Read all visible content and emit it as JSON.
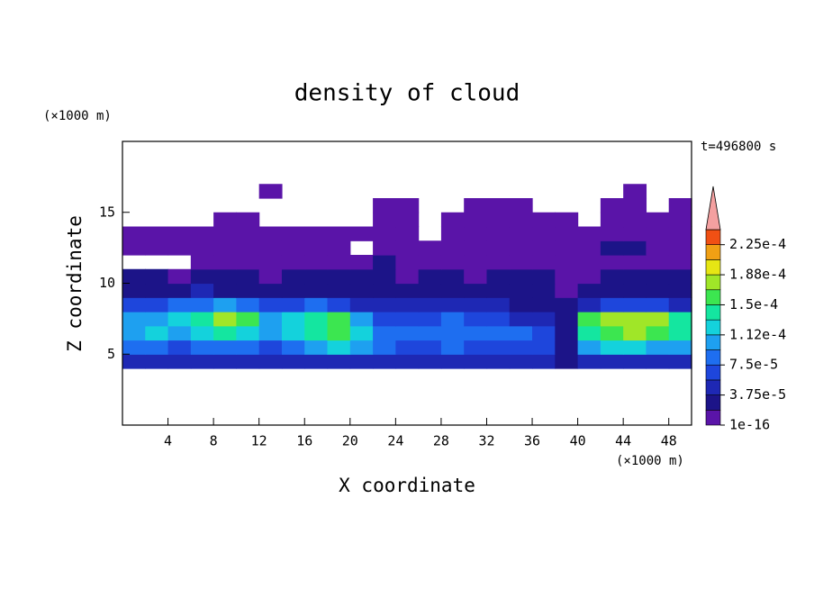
{
  "chart_data": {
    "type": "contour",
    "title": "density of cloud",
    "x_label": "X coordinate",
    "y_label": "Z coordinate",
    "x_unit": "(×1000 m)",
    "y_unit": "(×1000 m)",
    "annotation": "t=496800 s",
    "xlim": [
      0,
      50
    ],
    "ylim": [
      0,
      20
    ],
    "xticks": [
      4,
      8,
      12,
      16,
      20,
      24,
      28,
      32,
      36,
      40,
      44,
      48
    ],
    "yticks": [
      5,
      10,
      15
    ],
    "x": [
      1,
      3,
      5,
      7,
      9,
      11,
      13,
      15,
      17,
      19,
      21,
      23,
      25,
      27,
      29,
      31,
      33,
      35,
      37,
      39,
      41,
      43,
      45,
      47,
      49
    ],
    "y": [
      4.5,
      5.5,
      6.5,
      7.5,
      8.5,
      9.5,
      10.5,
      11.5,
      12.5,
      13.5,
      14.5,
      15.5,
      16.5,
      17.5
    ],
    "z": [
      [
        5e-05,
        5e-05,
        5e-05,
        5e-05,
        5e-05,
        5e-05,
        5e-05,
        5e-05,
        5e-05,
        5e-05,
        5e-05,
        5e-05,
        5e-05,
        5e-05,
        5e-05,
        5e-05,
        5e-05,
        5e-05,
        5e-05,
        2e-05,
        5e-05,
        5e-05,
        5e-05,
        5e-05,
        5e-05
      ],
      [
        9e-05,
        8e-05,
        7e-05,
        8e-05,
        9e-05,
        8e-05,
        7e-05,
        9e-05,
        0.00011,
        0.00012,
        0.0001,
        8e-05,
        7e-05,
        6e-05,
        8e-05,
        7e-05,
        6e-05,
        7e-05,
        6e-05,
        3e-05,
        0.0001,
        0.00012,
        0.00012,
        0.00011,
        0.0001
      ],
      [
        0.00011,
        0.00012,
        0.00011,
        0.00013,
        0.00014,
        0.00013,
        0.00011,
        0.00013,
        0.00015,
        0.00016,
        0.00013,
        9e-05,
        8e-05,
        8e-05,
        9e-05,
        8e-05,
        8e-05,
        8e-05,
        6e-05,
        3e-05,
        0.00015,
        0.00016,
        0.00017,
        0.00016,
        0.00014
      ],
      [
        0.0001,
        0.00011,
        0.00012,
        0.00015,
        0.00017,
        0.00016,
        0.00011,
        0.00013,
        0.00015,
        0.00016,
        0.0001,
        7e-05,
        6e-05,
        7e-05,
        8e-05,
        7e-05,
        6e-05,
        5e-05,
        4e-05,
        2e-05,
        0.00016,
        0.00018,
        0.00018,
        0.00017,
        0.00014
      ],
      [
        6e-05,
        7e-05,
        8e-05,
        9e-05,
        0.0001,
        8e-05,
        6e-05,
        7e-05,
        8e-05,
        7e-05,
        5e-05,
        4e-05,
        4e-05,
        4e-05,
        5e-05,
        4e-05,
        4e-05,
        3e-05,
        3e-05,
        2e-05,
        4e-05,
        6e-05,
        7e-05,
        6e-05,
        5e-05
      ],
      [
        3e-05,
        3e-05,
        3e-05,
        4e-05,
        3e-05,
        3e-05,
        3e-05,
        3e-05,
        3e-05,
        3e-05,
        3e-05,
        2e-05,
        2e-05,
        3e-05,
        2e-05,
        2e-05,
        2e-05,
        2e-05,
        2e-05,
        1e-05,
        2e-05,
        2e-05,
        3e-05,
        3e-05,
        3e-05
      ],
      [
        2e-05,
        2e-05,
        1e-05,
        2e-05,
        2e-05,
        2e-05,
        1e-05,
        2e-05,
        2e-05,
        2e-05,
        2e-05,
        2e-05,
        1e-05,
        2e-05,
        2e-05,
        1e-05,
        2e-05,
        2e-05,
        2e-05,
        1e-05,
        1e-05,
        2e-05,
        2e-05,
        2e-05,
        2e-05
      ],
      [
        null,
        null,
        null,
        1e-05,
        1e-05,
        1e-05,
        1e-05,
        1e-05,
        1e-05,
        1e-05,
        1e-05,
        2e-05,
        1e-05,
        1e-05,
        1e-05,
        1e-05,
        1e-05,
        1e-05,
        1e-05,
        1e-05,
        1e-05,
        1e-05,
        1e-05,
        1e-05,
        1e-05
      ],
      [
        1e-05,
        1e-05,
        1e-05,
        1e-05,
        1e-05,
        1e-05,
        1e-05,
        1e-05,
        1e-05,
        1e-05,
        null,
        1e-05,
        1e-05,
        1e-05,
        1e-05,
        1e-05,
        1e-05,
        1e-05,
        1e-05,
        1e-05,
        1e-05,
        2e-05,
        2e-05,
        1e-05,
        1e-05
      ],
      [
        1e-05,
        1e-05,
        1e-05,
        1e-05,
        1e-05,
        1e-05,
        1e-05,
        1e-05,
        1e-05,
        1e-05,
        1e-05,
        1e-05,
        1e-05,
        null,
        1e-05,
        1e-05,
        1e-05,
        1e-05,
        1e-05,
        1e-05,
        1e-05,
        1e-05,
        1e-05,
        1e-05,
        1e-05
      ],
      [
        null,
        null,
        null,
        null,
        1e-05,
        1e-05,
        null,
        null,
        null,
        null,
        null,
        1e-05,
        1e-05,
        null,
        1e-05,
        1e-05,
        1e-05,
        1e-05,
        1e-05,
        1e-05,
        null,
        1e-05,
        1e-05,
        1e-05,
        1e-05
      ],
      [
        null,
        null,
        null,
        null,
        null,
        null,
        null,
        null,
        null,
        null,
        null,
        1e-05,
        1e-05,
        null,
        null,
        1e-05,
        1e-05,
        1e-05,
        null,
        null,
        null,
        1e-05,
        1e-05,
        null,
        1e-05
      ],
      [
        null,
        null,
        null,
        null,
        null,
        null,
        1e-05,
        null,
        null,
        null,
        null,
        null,
        null,
        null,
        null,
        null,
        null,
        null,
        null,
        null,
        null,
        null,
        1e-05,
        null,
        null
      ],
      [
        null,
        null,
        null,
        null,
        null,
        null,
        null,
        null,
        null,
        null,
        null,
        null,
        null,
        null,
        null,
        null,
        null,
        null,
        null,
        null,
        null,
        null,
        null,
        null,
        null
      ]
    ],
    "clim": [
      1e-16,
      0.00024375
    ],
    "colors": [
      "#5a14a8",
      "#1c1488",
      "#1e28b4",
      "#1e46dc",
      "#1e6ef0",
      "#1ea0f0",
      "#14d2dc",
      "#14e6a0",
      "#3ce650",
      "#a0e628",
      "#e6e614",
      "#f0a014",
      "#f05014"
    ],
    "overflow_color": "#f4a0a0",
    "cticks": [
      1e-16,
      {
        "value": 3.75e-05,
        "label": "3.75e-5"
      },
      {
        "value": 7.5e-05,
        "label": "7.5e-5"
      },
      {
        "value": 0.0001125,
        "label": "1.12e-4"
      },
      {
        "value": 0.00015,
        "label": "1.5e-4"
      },
      {
        "value": 0.0001875,
        "label": "1.88e-4"
      },
      {
        "value": 0.000225,
        "label": "2.25e-4"
      }
    ]
  }
}
